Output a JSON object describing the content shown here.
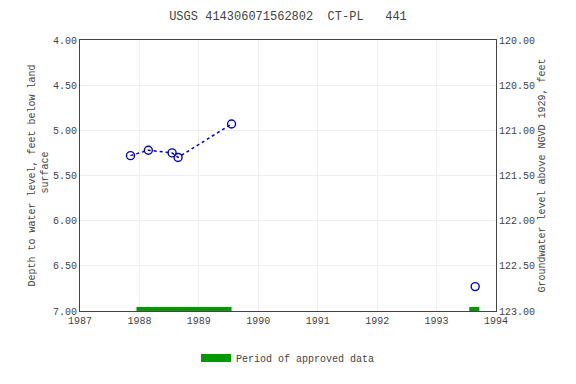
{
  "chart_data": {
    "type": "line",
    "title": "USGS 414306071562802  CT-PL   441",
    "ylabel": "Depth to water level, feet below land\n surface",
    "y2label": "Groundwater level above NGVD 1929, feet",
    "xlim": [
      1987,
      1994
    ],
    "xticks": [
      1987,
      1988,
      1989,
      1990,
      1991,
      1992,
      1993,
      1994
    ],
    "ylim": [
      7.0,
      4.0
    ],
    "yticks": [
      {
        "value": 4.0,
        "label": "4.00"
      },
      {
        "value": 4.5,
        "label": "4.50"
      },
      {
        "value": 5.0,
        "label": "5.00"
      },
      {
        "value": 5.5,
        "label": "5.50"
      },
      {
        "value": 6.0,
        "label": "6.00"
      },
      {
        "value": 6.5,
        "label": "6.50"
      },
      {
        "value": 7.0,
        "label": "7.00"
      }
    ],
    "y2lim": [
      123.0,
      120.0
    ],
    "y2ticks": [
      {
        "value": 123.0,
        "label": "123.00"
      },
      {
        "value": 122.5,
        "label": "122.50"
      },
      {
        "value": 122.0,
        "label": "122.00"
      },
      {
        "value": 121.5,
        "label": "121.50"
      },
      {
        "value": 121.0,
        "label": "121.00"
      },
      {
        "value": 120.5,
        "label": "120.50"
      },
      {
        "value": 120.0,
        "label": "120.00"
      }
    ],
    "grid": true,
    "legend": "bottom",
    "series": [
      {
        "x": [
          1987.85,
          1988.15,
          1988.55,
          1988.65,
          1989.55
        ],
        "values": [
          5.28,
          5.22,
          5.25,
          5.3,
          4.93
        ],
        "color": "#0000cc",
        "marker": "open_circle",
        "line_style": "dotted"
      },
      {
        "x": [
          1993.65
        ],
        "values": [
          6.73
        ],
        "color": "#0000cc",
        "marker": "open_circle",
        "line_style": "none"
      },
      {
        "name": "Period of approved data",
        "type": "span",
        "color": "#009900",
        "ranges": [
          [
            1987.95,
            1989.55
          ],
          [
            1993.55,
            1993.72
          ]
        ]
      }
    ]
  }
}
